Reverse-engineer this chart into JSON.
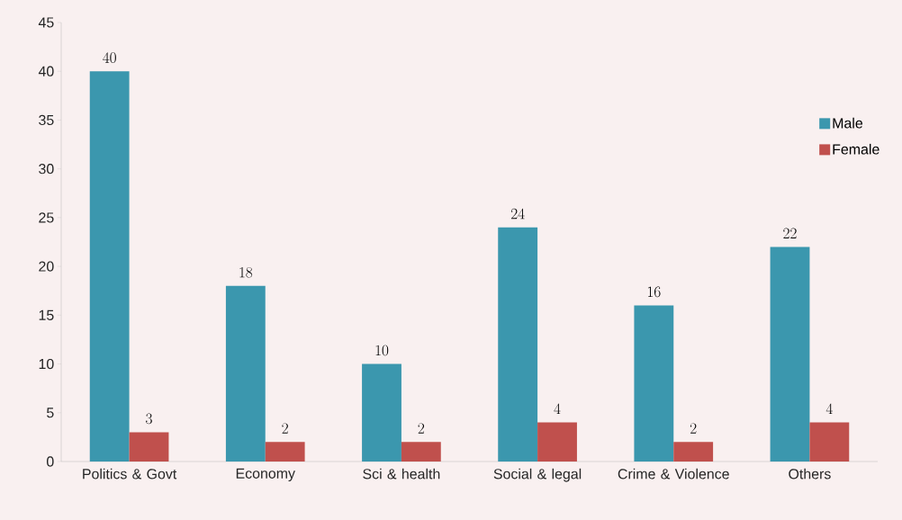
{
  "chart_data": {
    "type": "bar",
    "categories": [
      "Politics & Govt",
      "Economy",
      "Sci & health",
      "Social & legal",
      "Crime & Violence",
      "Others"
    ],
    "series": [
      {
        "name": "Male",
        "color": "#3b97ae",
        "values": [
          40,
          18,
          10,
          24,
          16,
          22
        ]
      },
      {
        "name": "Female",
        "color": "#c0504d",
        "values": [
          3,
          2,
          2,
          4,
          2,
          4
        ]
      }
    ],
    "ylim": [
      0,
      45
    ],
    "yticks": [
      0,
      5,
      10,
      15,
      20,
      25,
      30,
      35,
      40,
      45
    ],
    "data_labels": true,
    "legend": "right",
    "grid": false
  }
}
